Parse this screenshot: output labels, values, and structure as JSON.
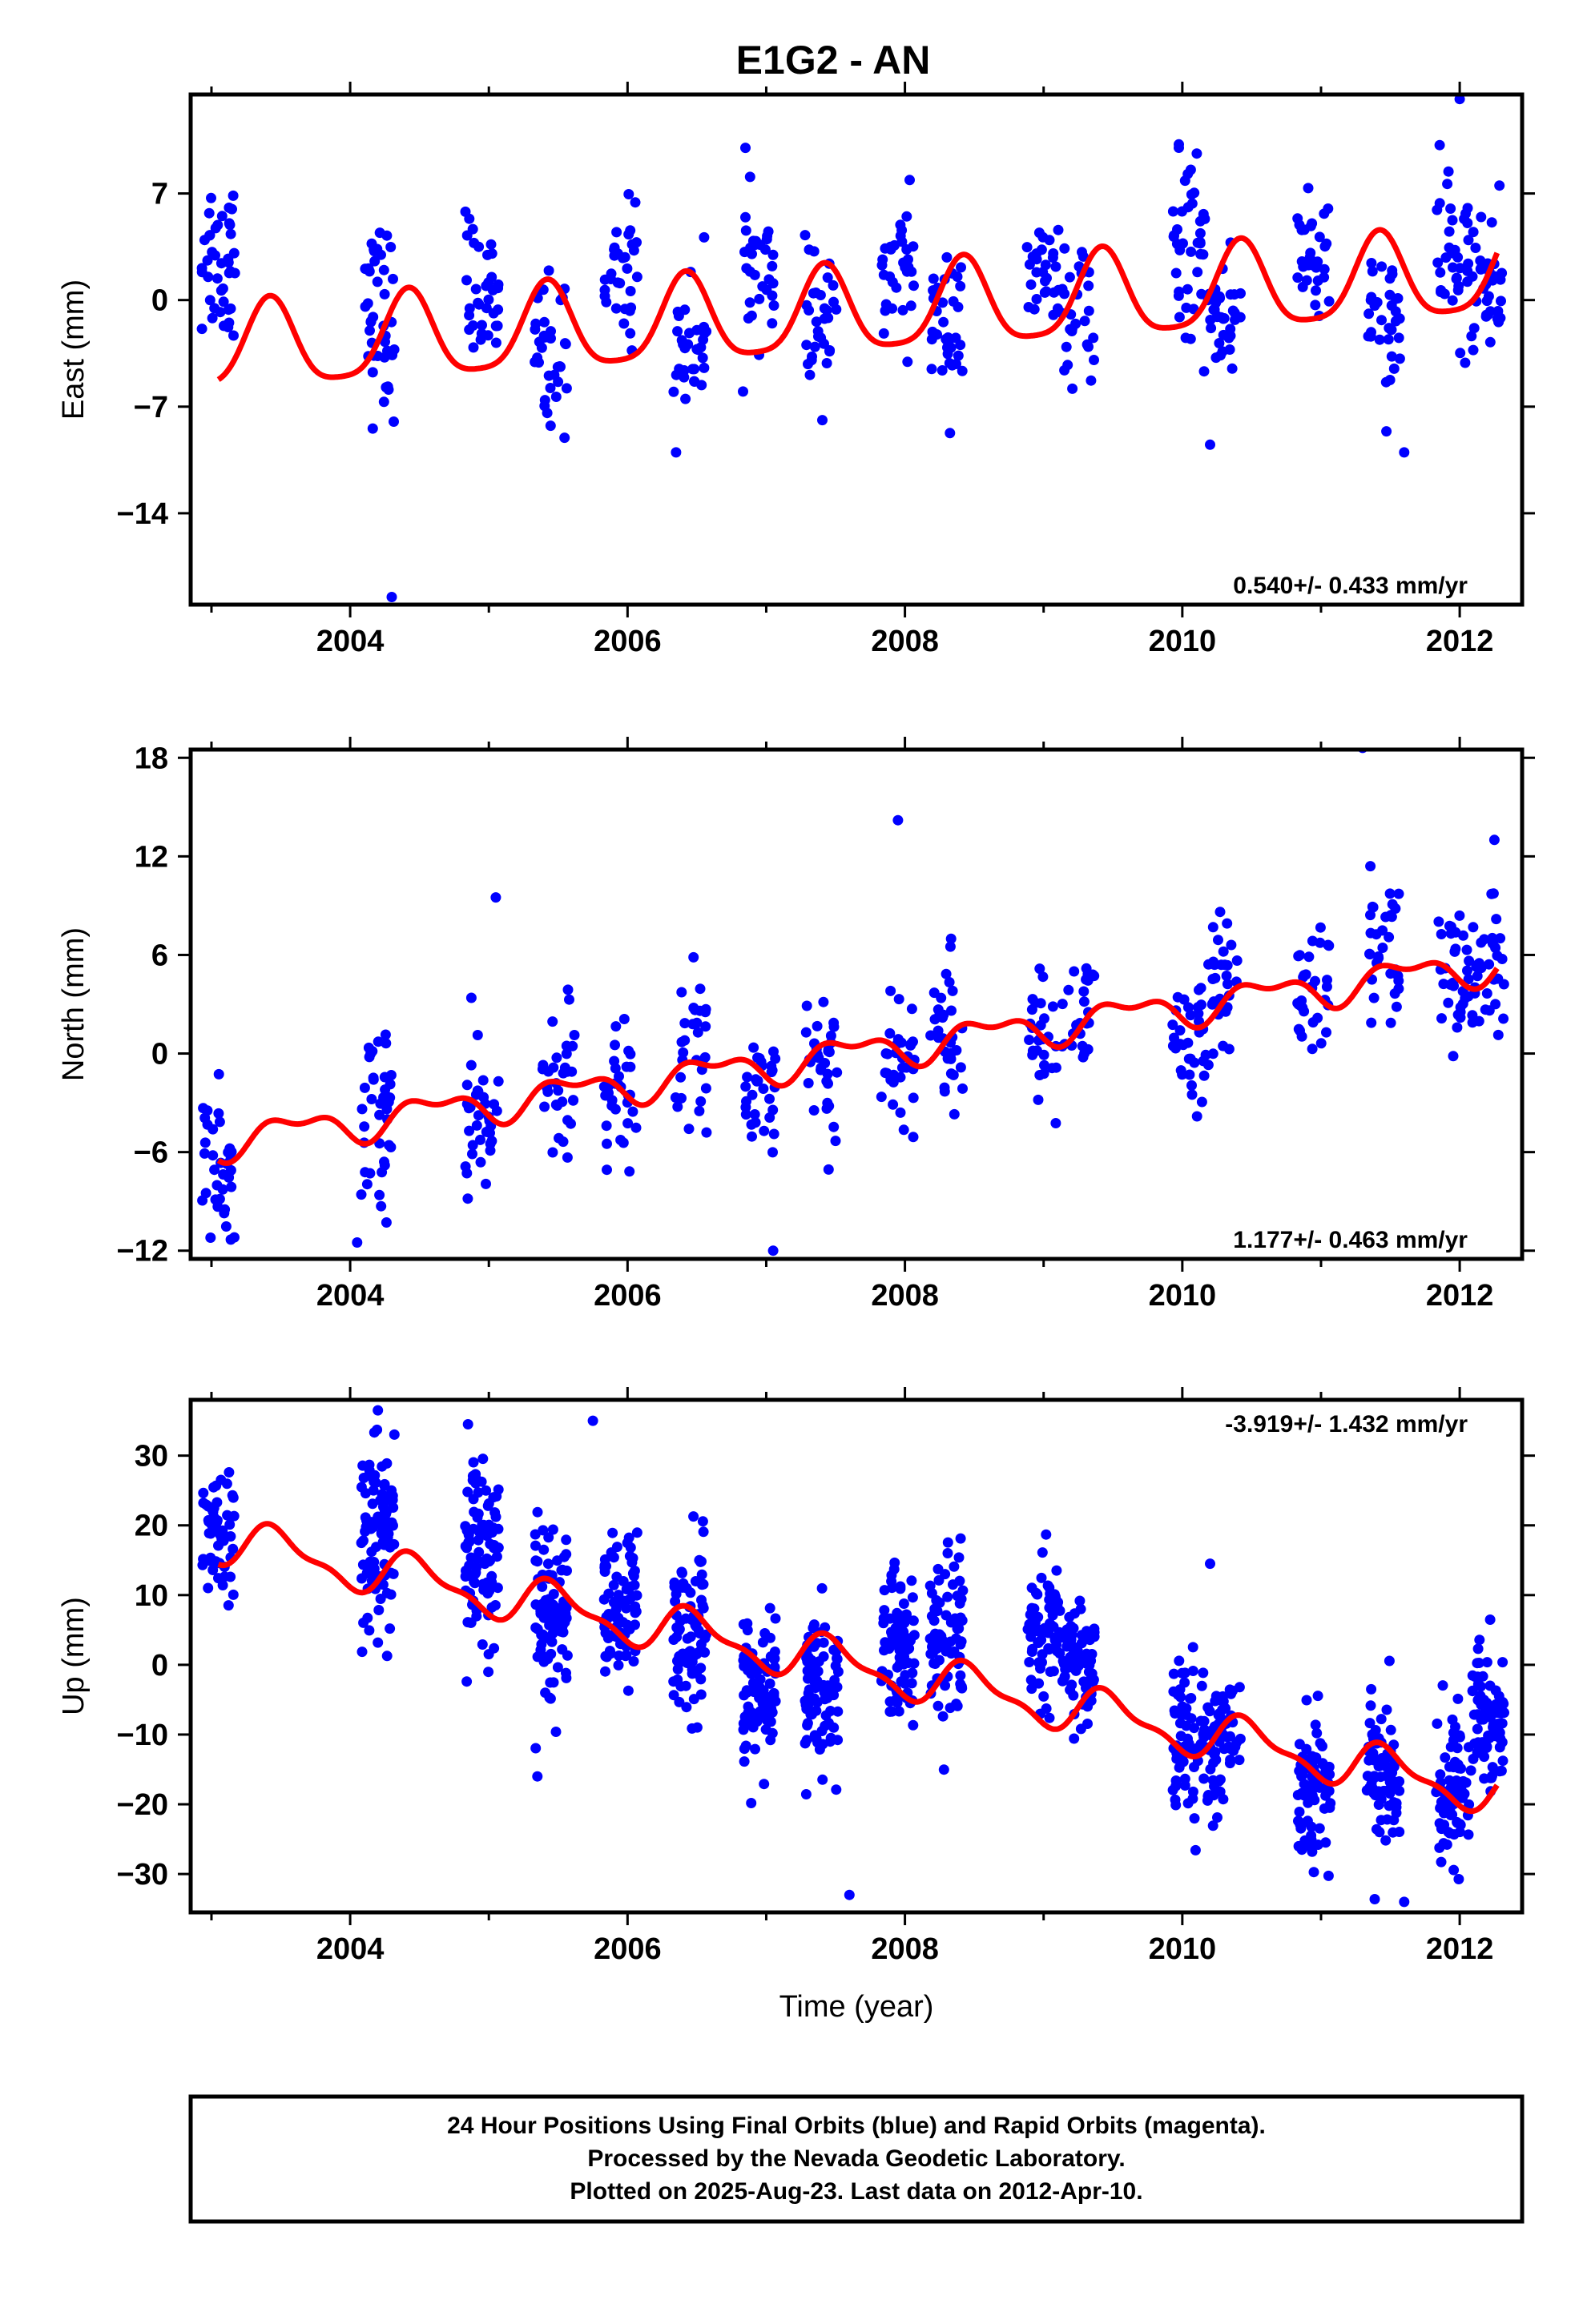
{
  "chart_data": [
    {
      "type": "scatter",
      "title": "E1G2 - AN",
      "ylabel": "East (mm)",
      "xlim": [
        2002.85,
        2012.45
      ],
      "ylim": [
        -20,
        13.5
      ],
      "yticks": [
        7,
        0,
        -7,
        -14
      ],
      "xticks": [
        2004,
        2006,
        2008,
        2010,
        2012
      ],
      "rate_text": "0.540+/- 0.433 mm/yr",
      "rate_position": "bottom-right",
      "series": [
        {
          "type": "scatter",
          "color": "#0000ff",
          "clusters": [
            [
              2003.05,
              3.0,
              3.0
            ],
            [
              2004.2,
              -1.2,
              3.0
            ],
            [
              2004.95,
              0.5,
              2.5
            ],
            [
              2005.45,
              -3.5,
              2.5
            ],
            [
              2005.95,
              2.0,
              2.3
            ],
            [
              2006.45,
              -2.5,
              2.3
            ],
            [
              2006.95,
              2.0,
              2.3
            ],
            [
              2007.4,
              -2.0,
              2.3
            ],
            [
              2007.95,
              1.5,
              2.3
            ],
            [
              2008.3,
              -1.5,
              2.5
            ],
            [
              2009.0,
              1.5,
              2.0
            ],
            [
              2009.25,
              -1.0,
              2.0
            ],
            [
              2010.05,
              3.0,
              3.0
            ],
            [
              2010.3,
              -1.0,
              2.5
            ],
            [
              2010.95,
              2.5,
              2.3
            ],
            [
              2011.45,
              -1.5,
              2.5
            ],
            [
              2011.95,
              2.5,
              2.5
            ],
            [
              2012.2,
              1.5,
              2.5
            ]
          ],
          "outliers": [
            [
              2004.3,
              -19.5
            ],
            [
              2006.85,
              10.0
            ],
            [
              2012.0,
              13.2
            ],
            [
              2011.6,
              -10.0
            ],
            [
              2006.35,
              -10.0
            ],
            [
              2010.2,
              -9.5
            ]
          ]
        },
        {
          "type": "line",
          "color": "#ff0000",
          "model": {
            "t0": 2007.6,
            "offset": -0.85,
            "rate": 0.54,
            "annual_amp": 2.8,
            "annual_phase": 2005.17,
            "semi_amp": 0.6,
            "semi_phase": 2003.3
          },
          "x_range": [
            2003.05,
            2012.27
          ]
        }
      ]
    },
    {
      "type": "scatter",
      "title": "",
      "ylabel": "North (mm)",
      "xlim": [
        2002.85,
        2012.45
      ],
      "ylim": [
        -12.5,
        18.5
      ],
      "yticks": [
        18,
        12,
        6,
        0,
        -6,
        -12
      ],
      "xticks": [
        2004,
        2006,
        2008,
        2010,
        2012
      ],
      "rate_text": "1.177+/- 0.463 mm/yr",
      "rate_position": "bottom-right",
      "series": [
        {
          "type": "scatter",
          "color": "#0000ff",
          "clusters": [
            [
              2003.05,
              -7.5,
              2.5
            ],
            [
              2004.2,
              -3.5,
              2.8
            ],
            [
              2004.95,
              -4.5,
              2.5
            ],
            [
              2005.5,
              -1.5,
              2.3
            ],
            [
              2005.95,
              -3.0,
              2.3
            ],
            [
              2006.45,
              0.0,
              2.3
            ],
            [
              2006.95,
              -2.0,
              2.3
            ],
            [
              2007.4,
              -0.5,
              2.3
            ],
            [
              2007.95,
              -0.5,
              2.3
            ],
            [
              2008.3,
              1.5,
              2.3
            ],
            [
              2009.0,
              1.0,
              2.0
            ],
            [
              2009.25,
              2.5,
              2.0
            ],
            [
              2010.05,
              -0.5,
              2.5
            ],
            [
              2010.3,
              3.5,
              2.3
            ],
            [
              2010.95,
              4.0,
              2.3
            ],
            [
              2011.45,
              6.5,
              2.3
            ],
            [
              2011.95,
              4.0,
              2.3
            ],
            [
              2012.2,
              4.5,
              2.3
            ]
          ],
          "outliers": [
            [
              2007.95,
              14.2
            ],
            [
              2011.3,
              18.6
            ],
            [
              2012.25,
              13.0
            ],
            [
              2005.05,
              9.5
            ],
            [
              2007.05,
              -12.0
            ],
            [
              2004.05,
              -11.5
            ]
          ]
        },
        {
          "type": "line",
          "color": "#ff0000",
          "model": {
            "t0": 2007.6,
            "offset": 0.0,
            "rate": 1.177,
            "annual_amp": 0.9,
            "annual_phase": 2003.35,
            "semi_amp": 0.5,
            "semi_phase": 2003.25
          },
          "x_range": [
            2003.05,
            2012.27
          ]
        }
      ]
    },
    {
      "type": "scatter",
      "title": "",
      "ylabel": "Up (mm)",
      "xlabel": "Time (year)",
      "xlim": [
        2002.85,
        2012.45
      ],
      "ylim": [
        -35.5,
        38
      ],
      "yticks": [
        30,
        20,
        10,
        0,
        -10,
        -20,
        -30
      ],
      "xticks": [
        2004,
        2006,
        2008,
        2010,
        2012
      ],
      "rate_text": "-3.919+/- 1.432 mm/yr",
      "rate_position": "top-right",
      "series": [
        {
          "type": "scatter",
          "color": "#0000ff",
          "clusters": [
            [
              2003.05,
              19.0,
              4.0
            ],
            [
              2004.2,
              18.0,
              7.0
            ],
            [
              2004.95,
              16.0,
              6.5
            ],
            [
              2005.45,
              8.0,
              6.0
            ],
            [
              2005.95,
              8.0,
              5.5
            ],
            [
              2006.45,
              5.0,
              6.0
            ],
            [
              2006.95,
              -5.0,
              6.0
            ],
            [
              2007.4,
              -4.0,
              6.0
            ],
            [
              2007.95,
              2.0,
              6.0
            ],
            [
              2008.3,
              3.0,
              6.0
            ],
            [
              2009.0,
              3.0,
              5.0
            ],
            [
              2009.25,
              0.0,
              5.0
            ],
            [
              2010.05,
              -10.0,
              5.0
            ],
            [
              2010.3,
              -10.0,
              5.0
            ],
            [
              2010.95,
              -17.0,
              5.0
            ],
            [
              2011.45,
              -15.0,
              5.5
            ],
            [
              2011.95,
              -18.0,
              5.5
            ],
            [
              2012.2,
              -8.0,
              5.5
            ]
          ],
          "outliers": [
            [
              2004.2,
              36.5
            ],
            [
              2004.85,
              34.5
            ],
            [
              2005.75,
              35.0
            ],
            [
              2007.6,
              -33.0
            ],
            [
              2011.6,
              -34.0
            ],
            [
              2005.35,
              -16.0
            ],
            [
              2010.2,
              14.5
            ]
          ]
        },
        {
          "type": "line",
          "color": "#ff0000",
          "model": {
            "t0": 2007.6,
            "offset": 0.0,
            "rate": -3.919,
            "annual_amp": 3.0,
            "annual_phase": 2003.23,
            "semi_amp": 1.2,
            "semi_phase": 2003.25
          },
          "x_range": [
            2003.05,
            2012.27
          ]
        }
      ]
    }
  ],
  "footer": {
    "lines": [
      "24 Hour Positions Using Final Orbits (blue) and Rapid Orbits (magenta).",
      "Processed by the Nevada Geodetic Laboratory.",
      "Plotted on 2025-Aug-23. Last data on 2012-Apr-10."
    ]
  },
  "colors": {
    "final_orbits": "#0000ff",
    "model_fit": "#ff0000",
    "frame": "#000000"
  }
}
